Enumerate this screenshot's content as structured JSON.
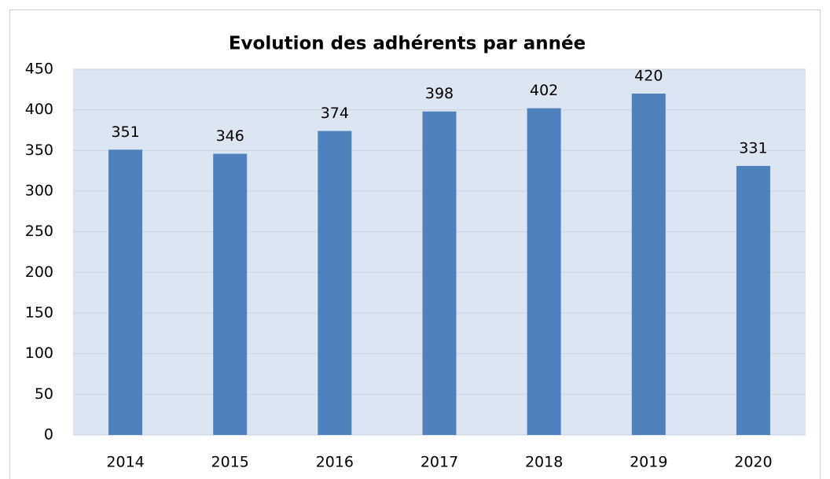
{
  "chart_data": {
    "type": "bar",
    "title": "Evolution des adhérents par année",
    "categories": [
      "2014",
      "2015",
      "2016",
      "2017",
      "2018",
      "2019",
      "2020"
    ],
    "values": [
      351,
      346,
      374,
      398,
      402,
      420,
      331
    ],
    "color": "#4f81bd",
    "ylim": [
      0,
      450
    ],
    "yticks": [
      0,
      50,
      100,
      150,
      200,
      250,
      300,
      350,
      400,
      450
    ],
    "grid": true
  }
}
